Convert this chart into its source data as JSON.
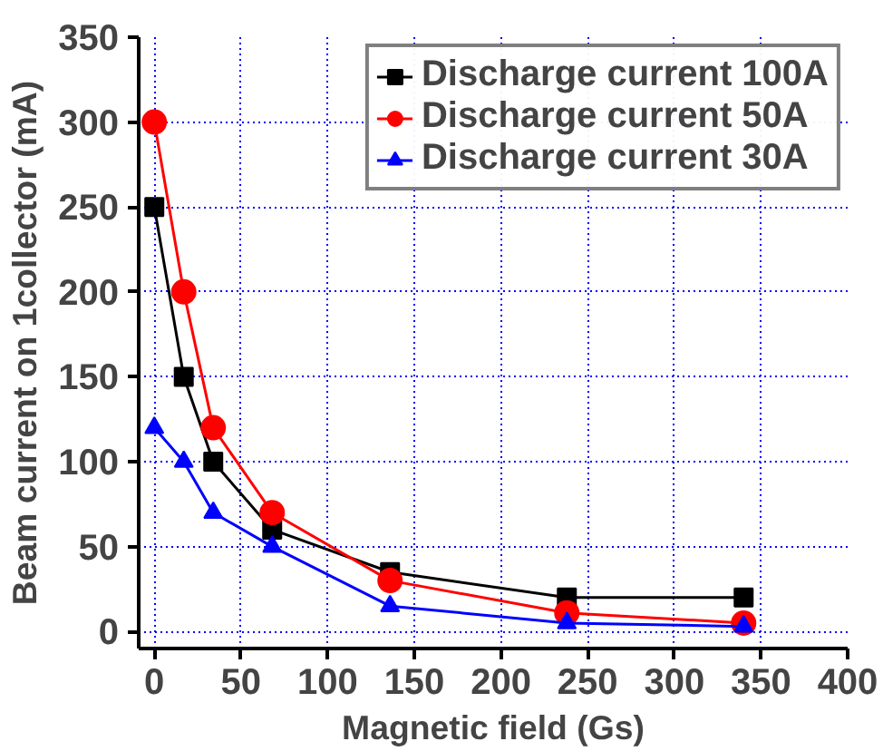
{
  "chart_data": {
    "type": "line",
    "xlabel": "Magnetic field (Gs)",
    "ylabel": "Beam current on 1collector (mA)",
    "x": [
      0,
      17,
      34,
      68,
      136,
      238,
      340
    ],
    "series": [
      {
        "name": "Discharge current 100A",
        "color": "#000000",
        "marker": "square",
        "values": [
          250,
          150,
          100,
          60,
          35,
          20,
          20
        ]
      },
      {
        "name": "Discharge current 50A",
        "color": "#ff0000",
        "marker": "circle",
        "values": [
          300,
          200,
          120,
          70,
          30,
          11,
          5
        ]
      },
      {
        "name": "Discharge current 30A",
        "color": "#0000ff",
        "marker": "triangle",
        "values": [
          120,
          100,
          70,
          50,
          15,
          5,
          3
        ]
      }
    ],
    "xlim": [
      -9,
      400
    ],
    "ylim": [
      -10,
      350
    ],
    "xticks": [
      0,
      50,
      100,
      150,
      200,
      250,
      300,
      350,
      400
    ],
    "yticks": [
      0,
      50,
      100,
      150,
      200,
      250,
      300,
      350
    ],
    "grid": true,
    "legend": "top right",
    "line_style": "solid"
  }
}
